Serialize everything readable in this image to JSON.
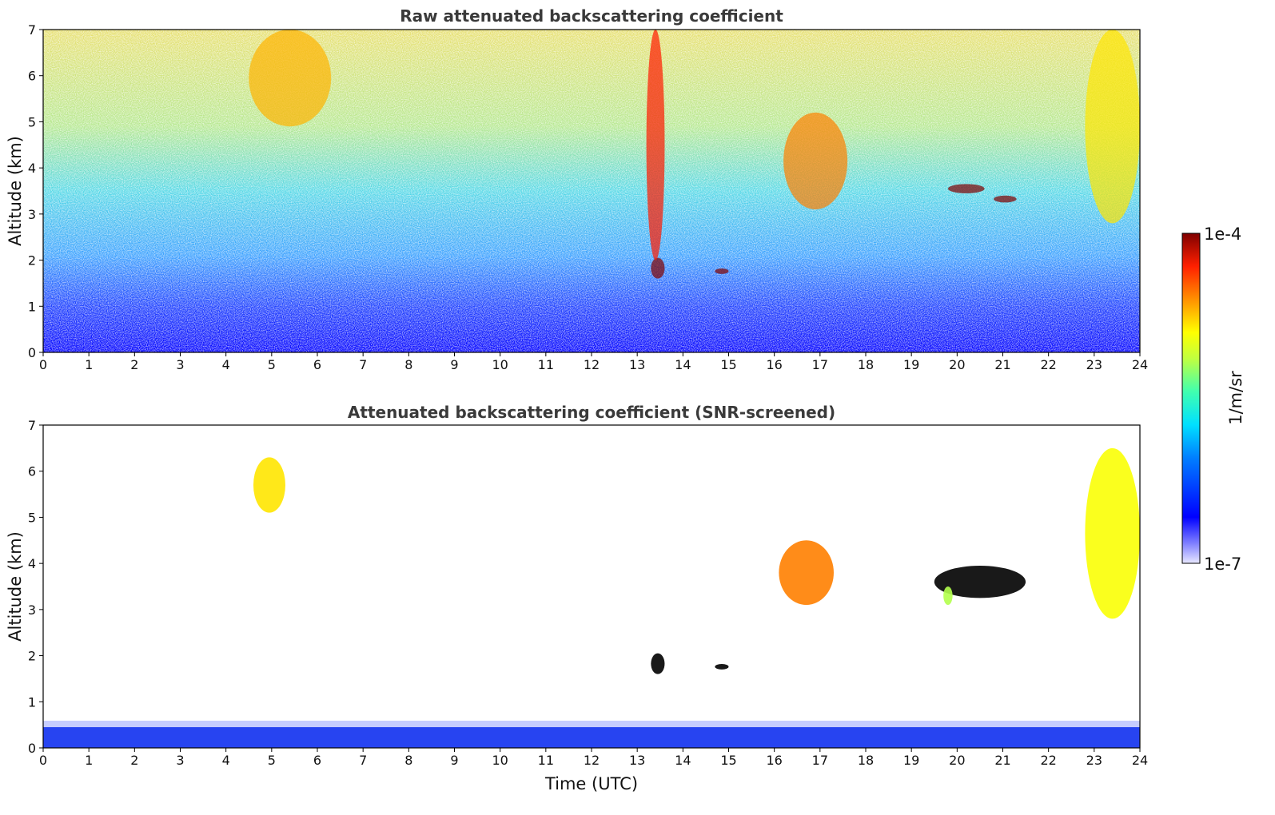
{
  "chart_data": [
    {
      "type": "heatmap",
      "title": "Raw attenuated backscattering coefficient",
      "xlabel": "",
      "ylabel": "Altitude (km)",
      "xlim": [
        0,
        24
      ],
      "ylim": [
        0,
        7
      ],
      "xticks": [
        "0",
        "1",
        "2",
        "3",
        "4",
        "5",
        "6",
        "7",
        "8",
        "9",
        "10",
        "11",
        "12",
        "13",
        "14",
        "15",
        "16",
        "17",
        "18",
        "19",
        "20",
        "21",
        "22",
        "23",
        "24"
      ],
      "yticks": [
        "0",
        "1",
        "2",
        "3",
        "4",
        "5",
        "6",
        "7"
      ],
      "colorscale": "jet",
      "features": [
        {
          "kind": "noise-gradient",
          "description_level": "blue near surface grading to green/yellow aloft"
        },
        {
          "kind": "cloud",
          "x": [
            13.3,
            13.6
          ],
          "y": [
            1.6,
            2.05
          ],
          "intensity": 1.0
        },
        {
          "kind": "cloud",
          "x": [
            14.7,
            15.0
          ],
          "y": [
            1.7,
            1.82
          ],
          "intensity": 1.0
        },
        {
          "kind": "cloud",
          "x": [
            19.8,
            20.6
          ],
          "y": [
            3.45,
            3.65
          ],
          "intensity": 1.0
        },
        {
          "kind": "cloud",
          "x": [
            20.8,
            21.3
          ],
          "y": [
            3.25,
            3.4
          ],
          "intensity": 1.0
        },
        {
          "kind": "cloud",
          "x": [
            16.2,
            17.6
          ],
          "y": [
            3.1,
            5.2
          ],
          "intensity": 0.75
        },
        {
          "kind": "cloud",
          "x": [
            4.5,
            6.3
          ],
          "y": [
            4.9,
            7.0
          ],
          "intensity": 0.7
        },
        {
          "kind": "cloud",
          "x": [
            22.8,
            24.0
          ],
          "y": [
            2.8,
            7.0
          ],
          "intensity": 0.65
        },
        {
          "kind": "cloud",
          "x": [
            13.2,
            13.6
          ],
          "y": [
            2.0,
            7.0
          ],
          "intensity": 0.85
        }
      ]
    },
    {
      "type": "heatmap",
      "title": "Attenuated backscattering coefficient (SNR-screened)",
      "xlabel": "Time (UTC)",
      "ylabel": "Altitude (km)",
      "xlim": [
        0,
        24
      ],
      "ylim": [
        0,
        7
      ],
      "xticks": [
        "0",
        "1",
        "2",
        "3",
        "4",
        "5",
        "6",
        "7",
        "8",
        "9",
        "10",
        "11",
        "12",
        "13",
        "14",
        "15",
        "16",
        "17",
        "18",
        "19",
        "20",
        "21",
        "22",
        "23",
        "24"
      ],
      "yticks": [
        "0",
        "1",
        "2",
        "3",
        "4",
        "5",
        "6",
        "7"
      ],
      "colorscale": "jet",
      "features": [
        {
          "kind": "surface-layer",
          "y": [
            0,
            0.45
          ]
        },
        {
          "kind": "cloud",
          "x": [
            13.3,
            13.6
          ],
          "y": [
            1.6,
            2.05
          ],
          "intensity": 1.0
        },
        {
          "kind": "cloud",
          "x": [
            14.7,
            15.0
          ],
          "y": [
            1.7,
            1.82
          ],
          "intensity": 1.0
        },
        {
          "kind": "cloud",
          "x": [
            19.5,
            21.5
          ],
          "y": [
            3.25,
            3.95
          ],
          "intensity": 1.0
        },
        {
          "kind": "cloud",
          "x": [
            19.7,
            19.9
          ],
          "y": [
            3.1,
            3.5
          ],
          "intensity": 0.55
        },
        {
          "kind": "cloud",
          "x": [
            16.1,
            17.3
          ],
          "y": [
            3.1,
            4.5
          ],
          "intensity": 0.75
        },
        {
          "kind": "cloud",
          "x": [
            4.6,
            5.3
          ],
          "y": [
            5.1,
            6.3
          ],
          "intensity": 0.65
        },
        {
          "kind": "cloud",
          "x": [
            22.8,
            24.0
          ],
          "y": [
            2.8,
            6.5
          ],
          "intensity": 0.62
        }
      ]
    }
  ],
  "colorbar": {
    "label": "1/m/sr",
    "max_label": "1e-4",
    "min_label": "1e-7",
    "colors": [
      "#00007f",
      "#0000ff",
      "#007fff",
      "#00ffff",
      "#7fff7f",
      "#ffff00",
      "#ff7f00",
      "#ff0000",
      "#7f0000"
    ]
  }
}
